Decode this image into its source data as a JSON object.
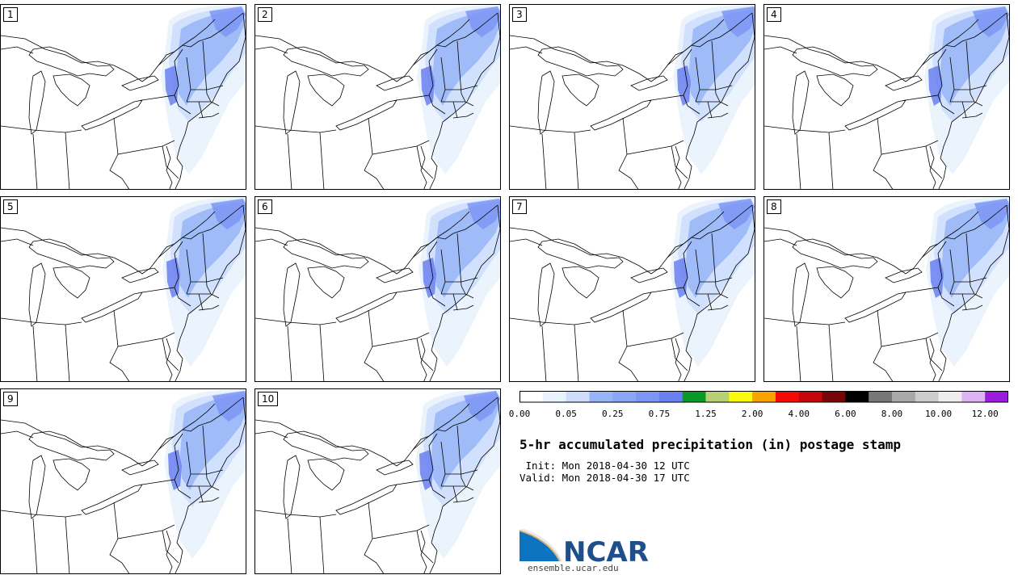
{
  "panels": [
    "1",
    "2",
    "3",
    "4",
    "5",
    "6",
    "7",
    "8",
    "9",
    "10"
  ],
  "colorbar": {
    "colors": [
      "#ffffff",
      "#e8f2fd",
      "#cddcfb",
      "#96b5f7",
      "#8aa7f6",
      "#7d95f4",
      "#6a7ff0",
      "#089a24",
      "#b6d175",
      "#fafa0f",
      "#f8a300",
      "#f40a05",
      "#c4060a",
      "#750506",
      "#000000",
      "#777777",
      "#a8a8a8",
      "#cccccc",
      "#eeeeee",
      "#ddb2f2",
      "#9b1bdf"
    ],
    "ticks": [
      "0.00",
      "0.05",
      "0.25",
      "0.75",
      "1.25",
      "2.00",
      "4.00",
      "6.00",
      "8.00",
      "10.00",
      "12.00"
    ]
  },
  "title": "5-hr accumulated precipitation (in) postage stamp",
  "init": " Init: Mon 2018-04-30 12 UTC",
  "valid": "Valid: Mon 2018-04-30 17 UTC",
  "logo": {
    "text": "NCAR",
    "url": "ensemble.ucar.edu"
  }
}
